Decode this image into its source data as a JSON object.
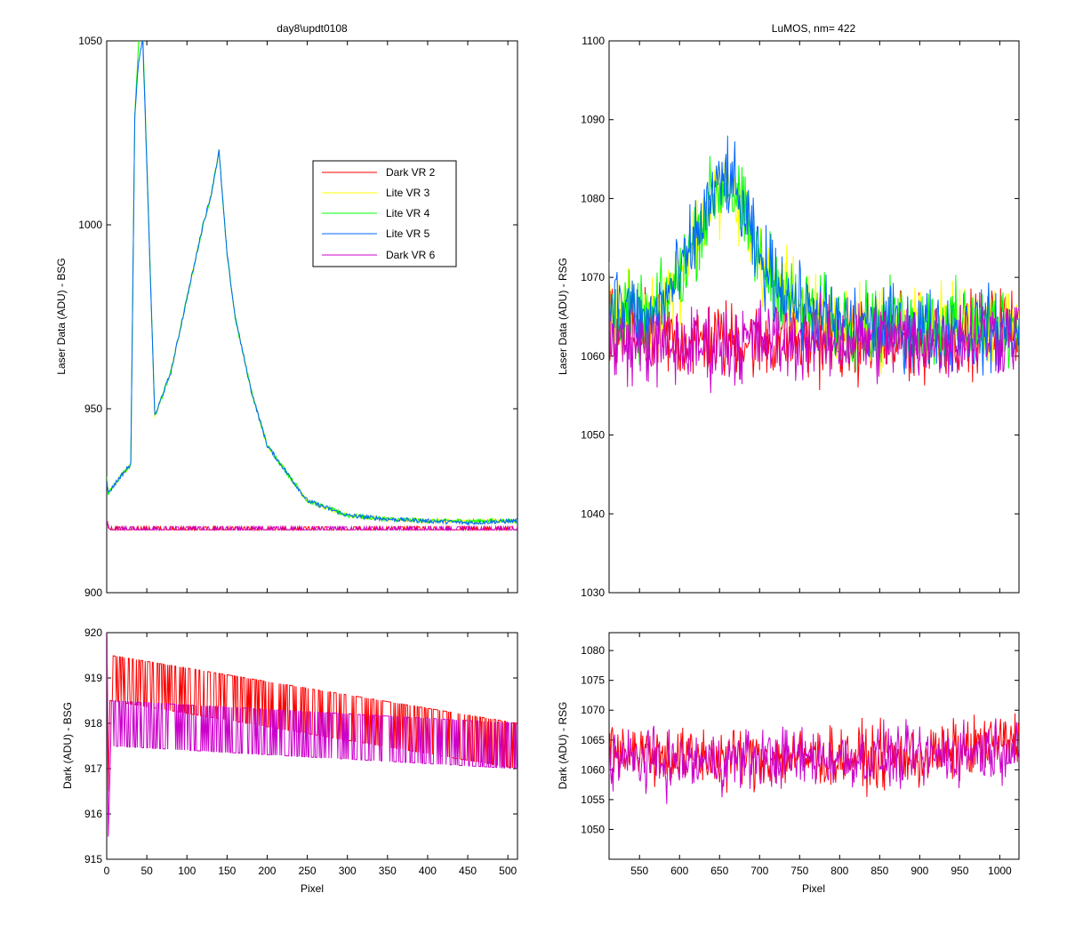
{
  "colors": {
    "dark_vr2": "#ff0000",
    "lite_vr3": "#ffff00",
    "lite_vr4": "#00ff00",
    "lite_vr5": "#0066ff",
    "dark_vr6": "#cc00cc",
    "legend_border": "#000000"
  },
  "legend": {
    "placement": "upper-left plot, right of center",
    "entries": [
      {
        "label": "Dark VR 2",
        "color": "#ff0000"
      },
      {
        "label": "Lite VR 3",
        "color": "#ffff00"
      },
      {
        "label": "Lite VR 4",
        "color": "#00ff00"
      },
      {
        "label": "Lite VR 5",
        "color": "#0066ff"
      },
      {
        "label": "Dark VR 6",
        "color": "#cc00cc"
      }
    ]
  },
  "chart_data": [
    {
      "id": "top-left",
      "type": "line",
      "title": "day8\\updt0108",
      "xlabel": "",
      "ylabel": "Laser Data (ADU) - BSG",
      "xlim": [
        0,
        512
      ],
      "ylim": [
        900,
        1050
      ],
      "x_ticks": [
        0,
        50,
        100,
        150,
        200,
        250,
        300,
        350,
        400,
        450,
        500
      ],
      "x_tick_labels": [],
      "y_ticks": [
        900,
        950,
        1000,
        1050
      ],
      "y_tick_labels": [
        "900",
        "950",
        "1000",
        "1050"
      ],
      "grid": false,
      "series": [
        {
          "name": "Dark VR 2",
          "color": "#ff0000",
          "noise": "dark",
          "x": [
            0,
            2,
            5,
            100,
            200,
            300,
            400,
            512
          ],
          "y": [
            920,
            918,
            917.5,
            917.5,
            917.5,
            917.5,
            917.5,
            917.5
          ]
        },
        {
          "name": "Lite VR 3",
          "color": "#ffff00",
          "noise": "small",
          "x": [
            0,
            2,
            15,
            30,
            35,
            40,
            45,
            60,
            80,
            100,
            110,
            120,
            130,
            140,
            150,
            160,
            180,
            200,
            250,
            300,
            350,
            400,
            450,
            512
          ],
          "y": [
            931,
            927,
            931,
            935,
            1030,
            1050,
            1052,
            948,
            960,
            980,
            990,
            1000,
            1008,
            1020,
            992,
            975,
            955,
            940,
            925,
            921,
            920,
            919.5,
            919.5,
            919.5
          ]
        },
        {
          "name": "Lite VR 4",
          "color": "#00ff00",
          "noise": "small",
          "x": [
            0,
            2,
            15,
            30,
            35,
            40,
            45,
            60,
            80,
            100,
            110,
            120,
            130,
            140,
            150,
            160,
            180,
            200,
            250,
            300,
            350,
            400,
            450,
            512
          ],
          "y": [
            931,
            927,
            931,
            935,
            1030,
            1050,
            1052,
            948,
            960,
            980,
            990,
            1000,
            1008,
            1020,
            992,
            975,
            955,
            940,
            925,
            921,
            920,
            919.5,
            919.5,
            919.5
          ]
        },
        {
          "name": "Lite VR 5",
          "color": "#0066ff",
          "noise": "small",
          "x": [
            0,
            2,
            15,
            30,
            35,
            40,
            45,
            60,
            80,
            100,
            110,
            120,
            130,
            140,
            150,
            160,
            180,
            200,
            250,
            300,
            350,
            400,
            450,
            512
          ],
          "y": [
            931,
            927,
            931,
            935,
            1030,
            1045,
            1050,
            948,
            960,
            980,
            990,
            1000,
            1008,
            1020,
            992,
            975,
            955,
            940,
            925,
            921,
            920,
            919.5,
            919,
            919.5
          ]
        },
        {
          "name": "Dark VR 6",
          "color": "#cc00cc",
          "noise": "dark",
          "x": [
            0,
            2,
            5,
            100,
            200,
            300,
            400,
            512
          ],
          "y": [
            920,
            918,
            917.5,
            917.5,
            917.5,
            917.5,
            917.5,
            917.5
          ]
        }
      ]
    },
    {
      "id": "top-right",
      "type": "line",
      "title": "LuMOS, nm= 422",
      "xlabel": "",
      "ylabel": "Laser Data (ADU) - RSG",
      "xlim": [
        512,
        1024
      ],
      "ylim": [
        1030,
        1100
      ],
      "x_ticks": [
        550,
        600,
        650,
        700,
        750,
        800,
        850,
        900,
        950,
        1000
      ],
      "x_tick_labels": [],
      "y_ticks": [
        1030,
        1040,
        1050,
        1060,
        1070,
        1080,
        1090,
        1100
      ],
      "y_tick_labels": [
        "1030",
        "1040",
        "1050",
        "1060",
        "1070",
        "1080",
        "1090",
        "1100"
      ],
      "grid": false,
      "series": [
        {
          "name": "Dark VR 2",
          "color": "#ff0000",
          "noise": "wide",
          "x": [
            512,
            600,
            700,
            800,
            900,
            1024
          ],
          "y": [
            1063,
            1062,
            1062,
            1062,
            1062,
            1064
          ]
        },
        {
          "name": "Lite VR 3",
          "color": "#ffff00",
          "noise": "wide",
          "x": [
            512,
            560,
            600,
            640,
            660,
            680,
            700,
            750,
            800,
            1024
          ],
          "y": [
            1066,
            1064,
            1070,
            1080,
            1082,
            1078,
            1072,
            1066,
            1064,
            1064
          ]
        },
        {
          "name": "Lite VR 4",
          "color": "#00ff00",
          "noise": "wide",
          "x": [
            512,
            560,
            600,
            640,
            660,
            680,
            700,
            750,
            800,
            1024
          ],
          "y": [
            1066,
            1064,
            1070,
            1080,
            1082,
            1078,
            1072,
            1066,
            1064,
            1064
          ]
        },
        {
          "name": "Lite VR 5",
          "color": "#0066ff",
          "noise": "wide",
          "x": [
            512,
            560,
            600,
            640,
            660,
            680,
            700,
            750,
            800,
            1024
          ],
          "y": [
            1068,
            1064,
            1070,
            1080,
            1083,
            1078,
            1072,
            1066,
            1064,
            1063
          ]
        },
        {
          "name": "Dark VR 6",
          "color": "#cc00cc",
          "noise": "wide",
          "x": [
            512,
            600,
            700,
            800,
            900,
            1024
          ],
          "y": [
            1062,
            1061,
            1062,
            1062,
            1062,
            1063
          ]
        }
      ]
    },
    {
      "id": "bottom-left",
      "type": "line",
      "title": "",
      "xlabel": "Pixel",
      "ylabel": "Dark (ADU) - BSG",
      "xlim": [
        0,
        512
      ],
      "ylim": [
        915,
        920
      ],
      "x_ticks": [
        0,
        50,
        100,
        150,
        200,
        250,
        300,
        350,
        400,
        450,
        500
      ],
      "x_tick_labels": [
        "0",
        "50",
        "100",
        "150",
        "200",
        "250",
        "300",
        "350",
        "400",
        "450",
        "500"
      ],
      "y_ticks": [
        915,
        916,
        917,
        918,
        919,
        920
      ],
      "y_tick_labels": [
        "915",
        "916",
        "917",
        "918",
        "919",
        "920"
      ],
      "grid": false,
      "series": [
        {
          "name": "Dark VR 2",
          "color": "#ff0000",
          "noise": "binary",
          "x": [
            0,
            2,
            5,
            512
          ],
          "y": [
            920,
            916,
            919,
            917.5
          ]
        },
        {
          "name": "Dark VR 6",
          "color": "#cc00cc",
          "noise": "binary",
          "x": [
            0,
            2,
            5,
            512
          ],
          "y": [
            920,
            916,
            918,
            917.5
          ]
        }
      ]
    },
    {
      "id": "bottom-right",
      "type": "line",
      "title": "",
      "xlabel": "Pixel",
      "ylabel": "Dark (ADU) - RSG",
      "xlim": [
        512,
        1024
      ],
      "ylim": [
        1045,
        1083
      ],
      "x_ticks": [
        550,
        600,
        650,
        700,
        750,
        800,
        850,
        900,
        950,
        1000
      ],
      "x_tick_labels": [
        "550",
        "600",
        "650",
        "700",
        "750",
        "800",
        "850",
        "900",
        "950",
        "1000"
      ],
      "y_ticks": [
        1050,
        1055,
        1060,
        1065,
        1070,
        1075,
        1080
      ],
      "y_tick_labels": [
        "1050",
        "1055",
        "1060",
        "1065",
        "1070",
        "1075",
        "1080"
      ],
      "grid": false,
      "series": [
        {
          "name": "Dark VR 2",
          "color": "#ff0000",
          "noise": "wide",
          "x": [
            512,
            600,
            700,
            800,
            900,
            1024
          ],
          "y": [
            1064,
            1062,
            1062,
            1062,
            1062,
            1065
          ]
        },
        {
          "name": "Dark VR 6",
          "color": "#cc00cc",
          "noise": "wide",
          "x": [
            512,
            600,
            700,
            800,
            900,
            1024
          ],
          "y": [
            1062,
            1061,
            1062,
            1062,
            1062,
            1064
          ]
        }
      ]
    }
  ]
}
